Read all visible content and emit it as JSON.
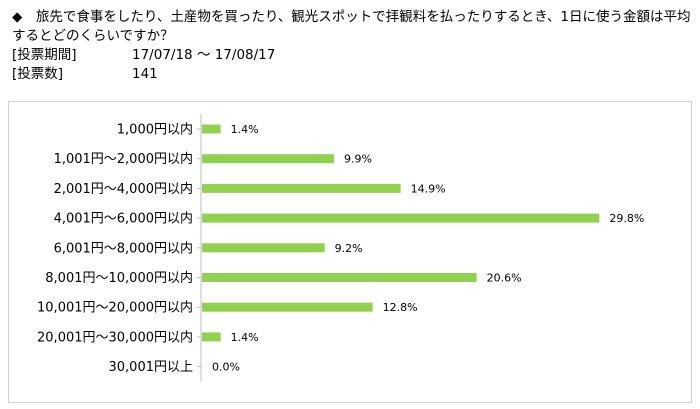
{
  "question": "◆　旅先で食事をしたり、土産物を買ったり、観光スポットで拝観料を払ったりするとき、1日に使う金額は平均するとどのくらいですか？",
  "period_label": "[投票期間]",
  "period_value": "17/07/18 〜 17/08/17",
  "votes_label": "[投票数]",
  "votes_value": "141",
  "colors": {
    "bar": "#92d050",
    "axis": "#bfbfbf"
  },
  "chart_data": {
    "type": "bar",
    "orientation": "horizontal",
    "categories": [
      "1,000円以内",
      "1,001円〜2,000円以内",
      "2,001円〜4,000円以内",
      "4,001円〜6,000円以内",
      "6,001円〜8,000円以内",
      "8,001円〜10,000円以内",
      "10,001円〜20,000円以内",
      "20,001円〜30,000円以内",
      "30,001円以上"
    ],
    "values": [
      1.4,
      9.9,
      14.9,
      29.8,
      9.2,
      20.6,
      12.8,
      1.4,
      0.0
    ],
    "value_labels": [
      "1.4%",
      "9.9%",
      "14.9%",
      "29.8%",
      "9.2%",
      "20.6%",
      "12.8%",
      "1.4%",
      "0.0%"
    ],
    "xlim": [
      0,
      30
    ],
    "unit": "%"
  }
}
